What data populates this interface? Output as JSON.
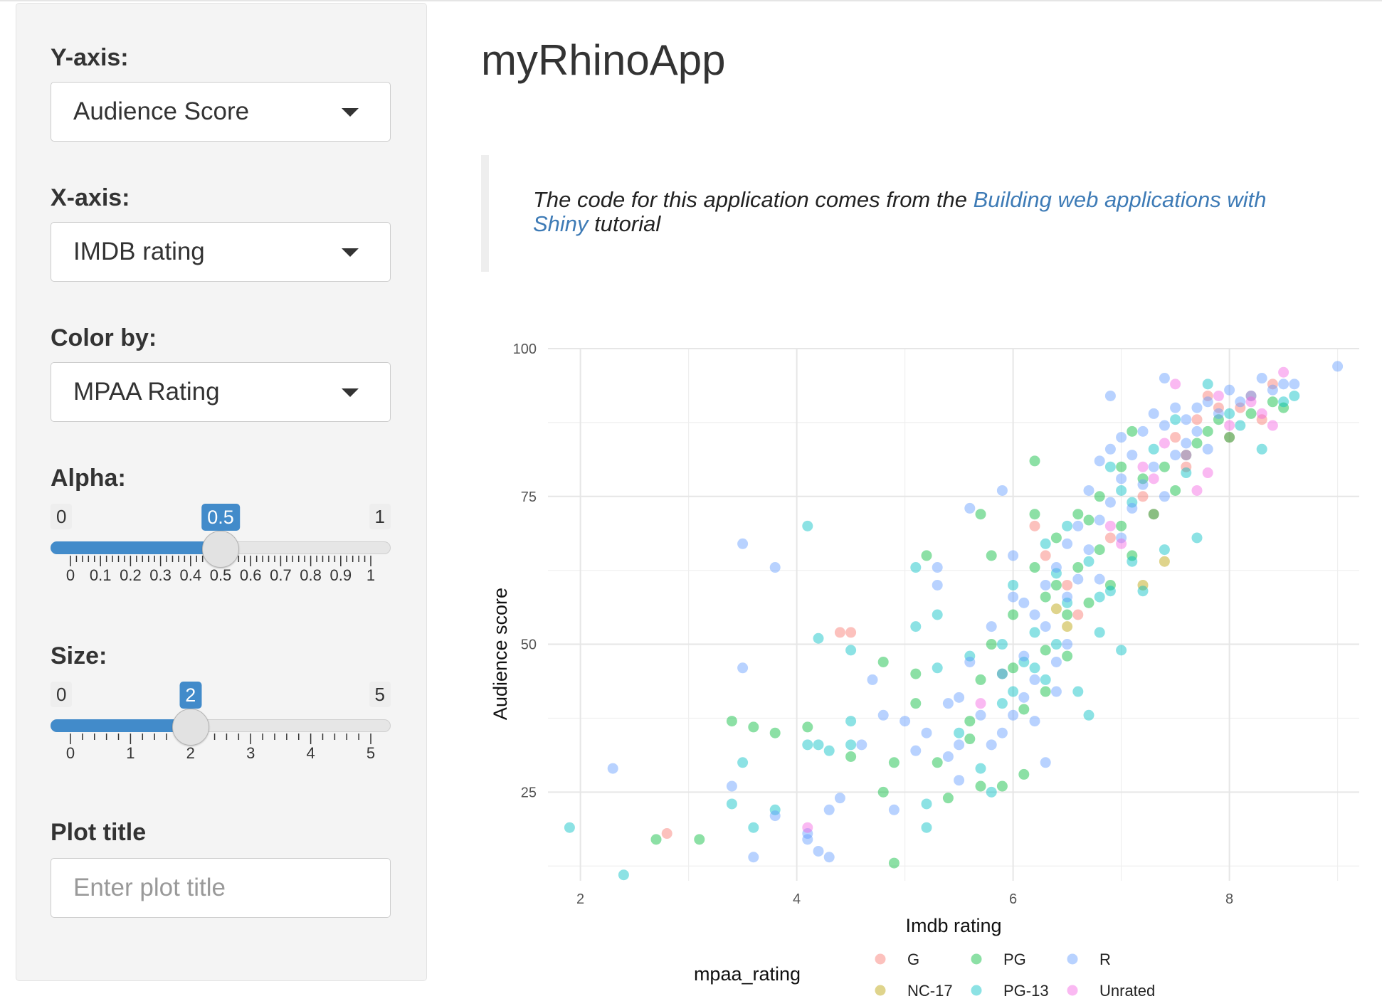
{
  "sidebar": {
    "y_axis": {
      "label": "Y-axis:",
      "value": "Audience Score"
    },
    "x_axis": {
      "label": "X-axis:",
      "value": "IMDB rating"
    },
    "color_by": {
      "label": "Color by:",
      "value": "MPAA Rating"
    },
    "alpha": {
      "label": "Alpha:",
      "min": "0",
      "max": "1",
      "value": "0.5",
      "fraction": 0.5,
      "ticks": [
        "0",
        "0.1",
        "0.2",
        "0.3",
        "0.4",
        "0.5",
        "0.6",
        "0.7",
        "0.8",
        "0.9",
        "1"
      ]
    },
    "size": {
      "label": "Size:",
      "min": "0",
      "max": "5",
      "value": "2",
      "fraction": 0.4,
      "ticks": [
        "0",
        "1",
        "2",
        "3",
        "4",
        "5"
      ]
    },
    "plot_title": {
      "label": "Plot title",
      "placeholder": "Enter plot title"
    }
  },
  "main": {
    "title": "myRhinoApp",
    "quote": {
      "prefix": "The code for this application comes from the ",
      "link": "Building web applications with Shiny",
      "suffix": " tutorial"
    }
  },
  "colors": {
    "accent": "#428bca",
    "G": "#F8766D",
    "NC-17": "#B79F00",
    "PG": "#00BA38",
    "PG-13": "#00BFC4",
    "R": "#619CFF",
    "Unrated": "#F564E3"
  },
  "chart_data": {
    "type": "scatter",
    "title": "",
    "xlabel": "Imdb rating",
    "ylabel": "Audience score",
    "xlim": [
      1.7,
      9.2
    ],
    "ylim": [
      10,
      100
    ],
    "xticks": [
      2,
      4,
      6,
      8
    ],
    "yticks": [
      25,
      50,
      75,
      100
    ],
    "grid": true,
    "legend_title": "mpaa_rating",
    "legend_position": "bottom",
    "series": [
      {
        "name": "G",
        "points": [
          [
            2.8,
            18
          ],
          [
            4.4,
            52
          ],
          [
            4.5,
            52
          ],
          [
            6.2,
            70
          ],
          [
            6.3,
            65
          ],
          [
            6.5,
            60
          ],
          [
            6.6,
            55
          ],
          [
            6.9,
            68
          ],
          [
            7.2,
            75
          ],
          [
            7.3,
            72
          ],
          [
            7.5,
            85
          ],
          [
            7.6,
            80
          ],
          [
            7.7,
            88
          ],
          [
            7.8,
            92
          ],
          [
            7.9,
            90
          ],
          [
            8.0,
            85
          ],
          [
            8.1,
            90
          ],
          [
            8.2,
            92
          ],
          [
            8.3,
            88
          ],
          [
            8.4,
            94
          ]
        ]
      },
      {
        "name": "NC-17",
        "points": [
          [
            6.4,
            56
          ],
          [
            6.5,
            53
          ],
          [
            7.2,
            60
          ],
          [
            7.4,
            64
          ]
        ]
      },
      {
        "name": "PG",
        "points": [
          [
            2.7,
            17
          ],
          [
            3.1,
            17
          ],
          [
            3.4,
            37
          ],
          [
            3.6,
            36
          ],
          [
            3.8,
            35
          ],
          [
            4.1,
            36
          ],
          [
            4.5,
            31
          ],
          [
            4.8,
            25
          ],
          [
            4.8,
            47
          ],
          [
            4.9,
            30
          ],
          [
            4.9,
            13
          ],
          [
            5.1,
            45
          ],
          [
            5.1,
            40
          ],
          [
            5.2,
            65
          ],
          [
            5.3,
            30
          ],
          [
            5.4,
            24
          ],
          [
            5.6,
            37
          ],
          [
            5.7,
            44
          ],
          [
            5.7,
            26
          ],
          [
            5.8,
            65
          ],
          [
            5.8,
            50
          ],
          [
            5.9,
            45
          ],
          [
            5.9,
            26
          ],
          [
            6.0,
            55
          ],
          [
            6.0,
            46
          ],
          [
            6.1,
            39
          ],
          [
            6.1,
            28
          ],
          [
            6.2,
            72
          ],
          [
            6.2,
            63
          ],
          [
            6.3,
            58
          ],
          [
            6.3,
            49
          ],
          [
            6.3,
            42
          ],
          [
            6.4,
            68
          ],
          [
            6.4,
            60
          ],
          [
            6.5,
            55
          ],
          [
            6.5,
            48
          ],
          [
            6.6,
            72
          ],
          [
            6.6,
            63
          ],
          [
            6.7,
            57
          ],
          [
            6.8,
            75
          ],
          [
            6.8,
            66
          ],
          [
            6.9,
            60
          ],
          [
            7.0,
            80
          ],
          [
            7.0,
            70
          ],
          [
            7.1,
            65
          ],
          [
            7.2,
            78
          ],
          [
            7.3,
            72
          ],
          [
            7.4,
            80
          ],
          [
            7.5,
            76
          ],
          [
            7.6,
            82
          ],
          [
            7.7,
            84
          ],
          [
            7.8,
            86
          ],
          [
            7.9,
            88
          ],
          [
            8.0,
            85
          ],
          [
            8.2,
            89
          ],
          [
            8.4,
            91
          ],
          [
            8.5,
            90
          ],
          [
            6.2,
            81
          ],
          [
            5.7,
            72
          ],
          [
            6.7,
            71
          ],
          [
            7.1,
            86
          ],
          [
            5.6,
            34
          ]
        ]
      },
      {
        "name": "PG-13",
        "points": [
          [
            1.9,
            19
          ],
          [
            2.4,
            11
          ],
          [
            3.4,
            23
          ],
          [
            3.5,
            30
          ],
          [
            3.6,
            19
          ],
          [
            3.8,
            22
          ],
          [
            4.1,
            70
          ],
          [
            4.1,
            33
          ],
          [
            4.2,
            51
          ],
          [
            4.2,
            33
          ],
          [
            4.3,
            32
          ],
          [
            4.5,
            49
          ],
          [
            4.5,
            37
          ],
          [
            4.5,
            33
          ],
          [
            5.1,
            63
          ],
          [
            5.1,
            53
          ],
          [
            5.2,
            23
          ],
          [
            5.2,
            19
          ],
          [
            5.3,
            55
          ],
          [
            5.3,
            46
          ],
          [
            5.5,
            35
          ],
          [
            5.6,
            48
          ],
          [
            5.7,
            29
          ],
          [
            5.8,
            25
          ],
          [
            5.9,
            40
          ],
          [
            5.9,
            50
          ],
          [
            6.0,
            60
          ],
          [
            6.0,
            42
          ],
          [
            6.1,
            47
          ],
          [
            6.2,
            52
          ],
          [
            6.2,
            46
          ],
          [
            6.3,
            44
          ],
          [
            6.3,
            67
          ],
          [
            6.4,
            62
          ],
          [
            6.4,
            50
          ],
          [
            6.5,
            70
          ],
          [
            6.5,
            57
          ],
          [
            6.6,
            42
          ],
          [
            6.7,
            38
          ],
          [
            6.7,
            64
          ],
          [
            6.8,
            52
          ],
          [
            6.8,
            58
          ],
          [
            6.9,
            59
          ],
          [
            6.9,
            80
          ],
          [
            7.0,
            76
          ],
          [
            7.0,
            49
          ],
          [
            7.1,
            74
          ],
          [
            7.1,
            64
          ],
          [
            7.2,
            59
          ],
          [
            7.3,
            83
          ],
          [
            7.4,
            66
          ],
          [
            7.5,
            88
          ],
          [
            7.6,
            79
          ],
          [
            7.7,
            68
          ],
          [
            7.8,
            94
          ],
          [
            8.0,
            89
          ],
          [
            8.1,
            87
          ],
          [
            8.3,
            83
          ],
          [
            8.5,
            91
          ],
          [
            8.6,
            92
          ]
        ]
      },
      {
        "name": "R",
        "points": [
          [
            2.3,
            29
          ],
          [
            3.4,
            26
          ],
          [
            3.5,
            67
          ],
          [
            3.5,
            46
          ],
          [
            3.6,
            14
          ],
          [
            3.8,
            63
          ],
          [
            3.8,
            21
          ],
          [
            4.1,
            18
          ],
          [
            4.1,
            17
          ],
          [
            4.2,
            15
          ],
          [
            4.3,
            14
          ],
          [
            4.3,
            22
          ],
          [
            4.4,
            24
          ],
          [
            4.6,
            33
          ],
          [
            4.7,
            44
          ],
          [
            4.8,
            38
          ],
          [
            4.9,
            22
          ],
          [
            5.0,
            37
          ],
          [
            5.1,
            32
          ],
          [
            5.2,
            35
          ],
          [
            5.3,
            60
          ],
          [
            5.3,
            63
          ],
          [
            5.4,
            40
          ],
          [
            5.4,
            31
          ],
          [
            5.5,
            41
          ],
          [
            5.5,
            33
          ],
          [
            5.6,
            73
          ],
          [
            5.6,
            47
          ],
          [
            5.7,
            38
          ],
          [
            5.8,
            53
          ],
          [
            5.8,
            33
          ],
          [
            5.9,
            76
          ],
          [
            5.9,
            45
          ],
          [
            5.9,
            35
          ],
          [
            6.0,
            65
          ],
          [
            6.0,
            58
          ],
          [
            6.0,
            38
          ],
          [
            6.1,
            57
          ],
          [
            6.1,
            48
          ],
          [
            6.1,
            41
          ],
          [
            6.2,
            55
          ],
          [
            6.2,
            44
          ],
          [
            6.2,
            37
          ],
          [
            6.3,
            60
          ],
          [
            6.3,
            53
          ],
          [
            6.4,
            63
          ],
          [
            6.4,
            47
          ],
          [
            6.4,
            42
          ],
          [
            6.5,
            67
          ],
          [
            6.5,
            58
          ],
          [
            6.5,
            50
          ],
          [
            6.6,
            70
          ],
          [
            6.6,
            61
          ],
          [
            6.7,
            76
          ],
          [
            6.7,
            66
          ],
          [
            6.8,
            81
          ],
          [
            6.8,
            71
          ],
          [
            6.8,
            61
          ],
          [
            6.9,
            92
          ],
          [
            6.9,
            83
          ],
          [
            6.9,
            74
          ],
          [
            7.0,
            85
          ],
          [
            7.0,
            78
          ],
          [
            7.0,
            68
          ],
          [
            7.1,
            82
          ],
          [
            7.1,
            73
          ],
          [
            7.2,
            86
          ],
          [
            7.2,
            77
          ],
          [
            7.3,
            89
          ],
          [
            7.3,
            80
          ],
          [
            7.4,
            95
          ],
          [
            7.4,
            87
          ],
          [
            7.4,
            75
          ],
          [
            7.5,
            90
          ],
          [
            7.5,
            82
          ],
          [
            7.6,
            88
          ],
          [
            7.6,
            84
          ],
          [
            7.7,
            90
          ],
          [
            7.7,
            86
          ],
          [
            7.8,
            91
          ],
          [
            7.8,
            83
          ],
          [
            7.9,
            89
          ],
          [
            8.0,
            93
          ],
          [
            8.1,
            91
          ],
          [
            8.2,
            92
          ],
          [
            8.3,
            95
          ],
          [
            8.4,
            93
          ],
          [
            8.5,
            94
          ],
          [
            8.6,
            94
          ],
          [
            9.0,
            97
          ],
          [
            6.3,
            30
          ],
          [
            5.5,
            27
          ]
        ]
      },
      {
        "name": "Unrated",
        "points": [
          [
            4.1,
            19
          ],
          [
            5.7,
            40
          ],
          [
            6.9,
            70
          ],
          [
            7.0,
            67
          ],
          [
            7.2,
            80
          ],
          [
            7.3,
            78
          ],
          [
            7.4,
            84
          ],
          [
            7.5,
            94
          ],
          [
            7.6,
            82
          ],
          [
            7.7,
            76
          ],
          [
            7.8,
            79
          ],
          [
            7.9,
            92
          ],
          [
            8.0,
            87
          ],
          [
            8.2,
            91
          ],
          [
            8.3,
            89
          ],
          [
            8.4,
            87
          ],
          [
            8.5,
            96
          ]
        ]
      }
    ]
  }
}
